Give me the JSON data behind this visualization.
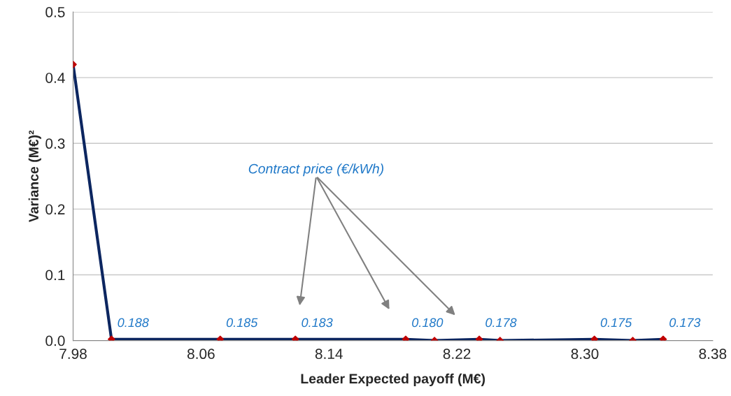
{
  "chart_data": {
    "type": "line",
    "xlabel": "Leader Expected payoff (M€)",
    "ylabel": "Variance (M€)²",
    "series": [
      {
        "color": "#0c2660",
        "marker": "diamond",
        "x": [
          7.98,
          8.004,
          8.072,
          8.119,
          8.188,
          8.206,
          8.234,
          8.247,
          8.306,
          8.33,
          8.349
        ],
        "values": [
          0.42,
          0.002,
          0.002,
          0.002,
          0.002,
          0.0,
          0.002,
          0.0,
          0.002,
          0.0,
          0.002
        ]
      }
    ],
    "annotations": [
      "Contract price (€/kWh)",
      {
        "text": "0.188",
        "x": 8.004,
        "y": 0.002
      },
      {
        "text": "0.185",
        "x": 8.072,
        "y": 0.002
      },
      {
        "text": "0.183",
        "x": 8.119,
        "y": 0.002
      },
      {
        "text": "0.180",
        "x": 8.188,
        "y": 0.002
      },
      {
        "text": "0.178",
        "x": 8.234,
        "y": 0.002
      },
      {
        "text": "0.175",
        "x": 8.306,
        "y": 0.002
      },
      {
        "text": "0.173",
        "x": 8.349,
        "y": 0.002
      }
    ],
    "xlim": [
      7.98,
      8.38
    ],
    "xticks": [
      7.98,
      8.06,
      8.14,
      8.22,
      {
        "value": 8.3,
        "label": "8.30"
      },
      8.38
    ],
    "ylim": [
      0.0,
      0.5
    ],
    "yticks": [
      {
        "value": 0.0,
        "label": "0.0"
      },
      0.1,
      0.2,
      0.3,
      0.4,
      0.5
    ],
    "grid": "y"
  }
}
